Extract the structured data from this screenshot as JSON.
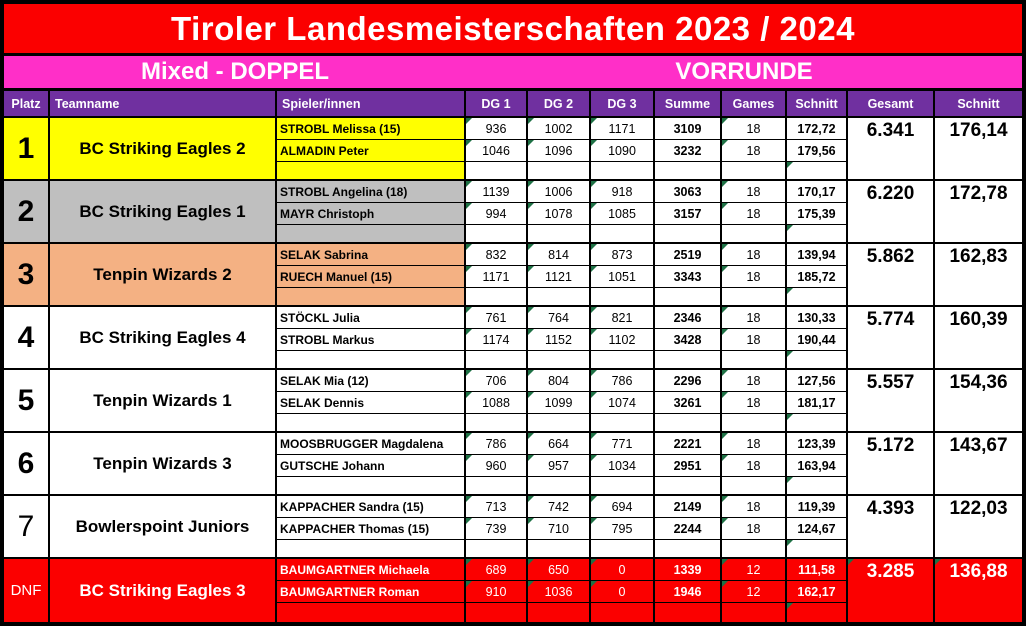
{
  "title": "Tiroler Landesmeisterschaften 2023 / 2024",
  "subtitle_left": "Mixed - DOPPEL",
  "subtitle_right": "VORRUNDE",
  "columns": [
    "Platz",
    "Teamname",
    "Spieler/innen",
    "DG 1",
    "DG 2",
    "DG 3",
    "Summe",
    "Games",
    "Schnitt",
    "Gesamt",
    "Schnitt"
  ],
  "colors": {
    "title_bg": "#FB0000",
    "subtitle_bg": "#FF2FC8",
    "header_bg": "#7030A0",
    "header_text": "#FFFFFF",
    "grid": "#000000",
    "flag_triangle": "#1E7145",
    "rank1_bg": "#FFFF00",
    "rank2_bg": "#BFBFBF",
    "rank3_bg": "#F4B183",
    "dnf_bg": "#FB0000"
  },
  "teams": [
    {
      "platz": "1",
      "platz_bold": true,
      "name": "BC Striking Eagles 2",
      "row_bg": "#FFFF00",
      "text_color": "#000000",
      "cells_bg": "#FFFFFF",
      "cells_text": "#000000",
      "gesamt": "6.341",
      "schnitt": "176,14",
      "players": [
        {
          "name": "STROBL Melissa (15)",
          "dg1": "936",
          "dg2": "1002",
          "dg3": "1171",
          "summe": "3109",
          "games": "18",
          "schnitt": "172,72"
        },
        {
          "name": "ALMADIN Peter",
          "dg1": "1046",
          "dg2": "1096",
          "dg3": "1090",
          "summe": "3232",
          "games": "18",
          "schnitt": "179,56"
        }
      ]
    },
    {
      "platz": "2",
      "platz_bold": true,
      "name": "BC Striking Eagles 1",
      "row_bg": "#BFBFBF",
      "text_color": "#000000",
      "cells_bg": "#FFFFFF",
      "cells_text": "#000000",
      "gesamt": "6.220",
      "schnitt": "172,78",
      "players": [
        {
          "name": "STROBL Angelina (18)",
          "dg1": "1139",
          "dg2": "1006",
          "dg3": "918",
          "summe": "3063",
          "games": "18",
          "schnitt": "170,17"
        },
        {
          "name": "MAYR Christoph",
          "dg1": "994",
          "dg2": "1078",
          "dg3": "1085",
          "summe": "3157",
          "games": "18",
          "schnitt": "175,39"
        }
      ]
    },
    {
      "platz": "3",
      "platz_bold": true,
      "name": "Tenpin Wizards 2",
      "row_bg": "#F4B183",
      "text_color": "#000000",
      "cells_bg": "#FFFFFF",
      "cells_text": "#000000",
      "gesamt": "5.862",
      "schnitt": "162,83",
      "players": [
        {
          "name": "SELAK Sabrina",
          "dg1": "832",
          "dg2": "814",
          "dg3": "873",
          "summe": "2519",
          "games": "18",
          "schnitt": "139,94"
        },
        {
          "name": "RUECH Manuel (15)",
          "dg1": "1171",
          "dg2": "1121",
          "dg3": "1051",
          "summe": "3343",
          "games": "18",
          "schnitt": "185,72"
        }
      ]
    },
    {
      "platz": "4",
      "platz_bold": true,
      "name": "BC Striking Eagles 4",
      "row_bg": "#FFFFFF",
      "text_color": "#000000",
      "cells_bg": "#FFFFFF",
      "cells_text": "#000000",
      "gesamt": "5.774",
      "schnitt": "160,39",
      "players": [
        {
          "name": "STÖCKL Julia",
          "dg1": "761",
          "dg2": "764",
          "dg3": "821",
          "summe": "2346",
          "games": "18",
          "schnitt": "130,33"
        },
        {
          "name": "STROBL Markus",
          "dg1": "1174",
          "dg2": "1152",
          "dg3": "1102",
          "summe": "3428",
          "games": "18",
          "schnitt": "190,44"
        }
      ]
    },
    {
      "platz": "5",
      "platz_bold": true,
      "name": "Tenpin Wizards 1",
      "row_bg": "#FFFFFF",
      "text_color": "#000000",
      "cells_bg": "#FFFFFF",
      "cells_text": "#000000",
      "gesamt": "5.557",
      "schnitt": "154,36",
      "players": [
        {
          "name": "SELAK Mia (12)",
          "dg1": "706",
          "dg2": "804",
          "dg3": "786",
          "summe": "2296",
          "games": "18",
          "schnitt": "127,56"
        },
        {
          "name": "SELAK Dennis",
          "dg1": "1088",
          "dg2": "1099",
          "dg3": "1074",
          "summe": "3261",
          "games": "18",
          "schnitt": "181,17"
        }
      ]
    },
    {
      "platz": "6",
      "platz_bold": true,
      "name": "Tenpin Wizards 3",
      "row_bg": "#FFFFFF",
      "text_color": "#000000",
      "cells_bg": "#FFFFFF",
      "cells_text": "#000000",
      "gesamt": "5.172",
      "schnitt": "143,67",
      "players": [
        {
          "name": "MOOSBRUGGER Magdalena",
          "dg1": "786",
          "dg2": "664",
          "dg3": "771",
          "summe": "2221",
          "games": "18",
          "schnitt": "123,39"
        },
        {
          "name": "GUTSCHE Johann",
          "dg1": "960",
          "dg2": "957",
          "dg3": "1034",
          "summe": "2951",
          "games": "18",
          "schnitt": "163,94"
        }
      ]
    },
    {
      "platz": "7",
      "platz_bold": false,
      "name": "Bowlerspoint Juniors",
      "row_bg": "#FFFFFF",
      "text_color": "#000000",
      "cells_bg": "#FFFFFF",
      "cells_text": "#000000",
      "gesamt": "4.393",
      "schnitt": "122,03",
      "players": [
        {
          "name": "KAPPACHER Sandra (15)",
          "dg1": "713",
          "dg2": "742",
          "dg3": "694",
          "summe": "2149",
          "games": "18",
          "schnitt": "119,39"
        },
        {
          "name": "KAPPACHER Thomas (15)",
          "dg1": "739",
          "dg2": "710",
          "dg3": "795",
          "summe": "2244",
          "games": "18",
          "schnitt": "124,67"
        }
      ]
    },
    {
      "platz": "DNF",
      "platz_bold": false,
      "name": "BC Striking Eagles 3",
      "row_bg": "#FB0000",
      "text_color": "#FFFFFF",
      "cells_bg": "#FB0000",
      "cells_text": "#FFFFFF",
      "gesamt": "3.285",
      "schnitt": "136,88",
      "players": [
        {
          "name": "BAUMGARTNER Michaela",
          "dg1": "689",
          "dg2": "650",
          "dg3": "0",
          "summe": "1339",
          "games": "12",
          "schnitt": "111,58"
        },
        {
          "name": "BAUMGARTNER Roman",
          "dg1": "910",
          "dg2": "1036",
          "dg3": "0",
          "summe": "1946",
          "games": "12",
          "schnitt": "162,17"
        }
      ]
    }
  ]
}
